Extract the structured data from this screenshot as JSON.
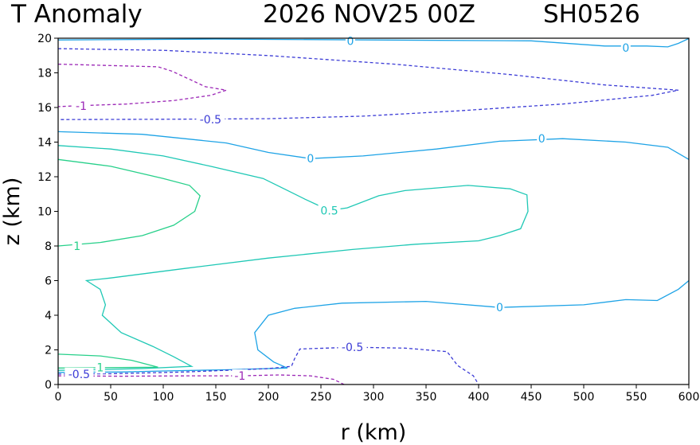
{
  "header": {
    "variable": "T Anomaly",
    "datetime": "2026 NOV25 00Z",
    "storm_id": "SH0526"
  },
  "chart_data": {
    "type": "contour",
    "title": "T Anomaly",
    "xlabel": "r (km)",
    "ylabel": "z (km)",
    "xlim": [
      0,
      600
    ],
    "ylim": [
      0,
      20
    ],
    "xticks": [
      0,
      50,
      100,
      150,
      200,
      250,
      300,
      350,
      400,
      450,
      500,
      550,
      600
    ],
    "yticks": [
      0,
      2,
      4,
      6,
      8,
      10,
      12,
      14,
      16,
      18,
      20
    ],
    "grid": false,
    "colors": {
      "neg1": "#9b26b6",
      "neg05": "#3c3cd6",
      "zero": "#1ea3e6",
      "pos05": "#1fc8b5",
      "pos1": "#27d08a"
    },
    "contours": [
      {
        "level": -1,
        "color": "#9b26b6",
        "dashed": true,
        "labels": [
          {
            "text": "-1",
            "x": 22,
            "z": 16.1
          }
        ],
        "points": [
          [
            0,
            18.5
          ],
          [
            95,
            18.35
          ],
          [
            108,
            18.1
          ],
          [
            126,
            17.6
          ],
          [
            140,
            17.2
          ],
          [
            160,
            17.0
          ],
          [
            145,
            16.7
          ],
          [
            110,
            16.4
          ],
          [
            65,
            16.2
          ],
          [
            20,
            16.1
          ],
          [
            0,
            16.05
          ]
        ]
      },
      {
        "level": -0.5,
        "color": "#3c3cd6",
        "dashed": true,
        "labels": [
          {
            "text": "-0.5",
            "x": 145,
            "z": 15.3
          }
        ],
        "points": [
          [
            0,
            19.4
          ],
          [
            100,
            19.3
          ],
          [
            200,
            19.0
          ],
          [
            320,
            18.5
          ],
          [
            430,
            17.9
          ],
          [
            520,
            17.3
          ],
          [
            590,
            17.0
          ],
          [
            565,
            16.7
          ],
          [
            480,
            16.2
          ],
          [
            380,
            15.8
          ],
          [
            290,
            15.5
          ],
          [
            200,
            15.35
          ],
          [
            100,
            15.32
          ],
          [
            0,
            15.3
          ]
        ]
      },
      {
        "level": 0,
        "color": "#1ea3e6",
        "dashed": false,
        "labels": [
          {
            "text": "0",
            "x": 278,
            "z": 19.85
          },
          {
            "text": "0",
            "x": 540,
            "z": 19.45
          }
        ],
        "points": [
          [
            0,
            19.9
          ],
          [
            150,
            19.95
          ],
          [
            300,
            19.9
          ],
          [
            450,
            19.85
          ],
          [
            520,
            19.55
          ],
          [
            560,
            19.55
          ],
          [
            580,
            19.5
          ],
          [
            590,
            19.7
          ],
          [
            600,
            19.98
          ]
        ]
      },
      {
        "level": 0,
        "color": "#1ea3e6",
        "dashed": false,
        "labels": [
          {
            "text": "0",
            "x": 240,
            "z": 13.05
          },
          {
            "text": "0",
            "x": 460,
            "z": 14.2
          }
        ],
        "points": [
          [
            0,
            14.6
          ],
          [
            80,
            14.45
          ],
          [
            160,
            13.95
          ],
          [
            200,
            13.4
          ],
          [
            240,
            13.05
          ],
          [
            290,
            13.2
          ],
          [
            360,
            13.6
          ],
          [
            420,
            14.05
          ],
          [
            480,
            14.2
          ],
          [
            540,
            14.0
          ],
          [
            580,
            13.7
          ],
          [
            600,
            13.0
          ]
        ]
      },
      {
        "level": 0.5,
        "color": "#1fc8b5",
        "dashed": false,
        "labels": [
          {
            "text": "0.5",
            "x": 258,
            "z": 10.05
          }
        ],
        "points": [
          [
            0,
            13.8
          ],
          [
            50,
            13.6
          ],
          [
            100,
            13.2
          ],
          [
            145,
            12.6
          ],
          [
            195,
            11.9
          ],
          [
            215,
            11.3
          ],
          [
            235,
            10.7
          ],
          [
            258,
            10.05
          ],
          [
            275,
            10.2
          ],
          [
            305,
            10.9
          ],
          [
            330,
            11.2
          ],
          [
            390,
            11.5
          ],
          [
            430,
            11.3
          ],
          [
            446,
            10.95
          ],
          [
            447,
            10.0
          ],
          [
            440,
            9.0
          ],
          [
            420,
            8.6
          ],
          [
            400,
            8.3
          ],
          [
            340,
            8.1
          ],
          [
            280,
            7.8
          ],
          [
            200,
            7.3
          ],
          [
            120,
            6.7
          ],
          [
            50,
            6.15
          ],
          [
            27,
            6.0
          ],
          [
            40,
            5.5
          ],
          [
            45,
            4.6
          ],
          [
            42,
            4.0
          ],
          [
            60,
            3.0
          ],
          [
            90,
            2.2
          ],
          [
            110,
            1.6
          ],
          [
            127,
            1.05
          ],
          [
            80,
            0.92
          ],
          [
            40,
            0.86
          ],
          [
            0,
            0.82
          ]
        ]
      },
      {
        "level": 1,
        "color": "#27d08a",
        "dashed": false,
        "labels": [
          {
            "text": "1",
            "x": 18,
            "z": 8.0
          }
        ],
        "points": [
          [
            0,
            13.0
          ],
          [
            50,
            12.6
          ],
          [
            100,
            11.9
          ],
          [
            125,
            11.5
          ],
          [
            135,
            10.9
          ],
          [
            130,
            10.0
          ],
          [
            110,
            9.2
          ],
          [
            80,
            8.6
          ],
          [
            40,
            8.2
          ],
          [
            0,
            8.0
          ]
        ]
      },
      {
        "level": 1,
        "color": "#27d08a",
        "dashed": false,
        "labels": [
          {
            "text": "1",
            "x": 40,
            "z": 1.0
          }
        ],
        "points": [
          [
            0,
            1.75
          ],
          [
            40,
            1.65
          ],
          [
            70,
            1.4
          ],
          [
            95,
            1.0
          ],
          [
            60,
            0.98
          ],
          [
            0,
            0.95
          ]
        ]
      },
      {
        "level": 0,
        "color": "#1ea3e6",
        "dashed": false,
        "labels": [
          {
            "text": "0",
            "x": 420,
            "z": 4.45
          }
        ],
        "points": [
          [
            600,
            6.0
          ],
          [
            590,
            5.5
          ],
          [
            570,
            4.85
          ],
          [
            540,
            4.9
          ],
          [
            500,
            4.6
          ],
          [
            420,
            4.45
          ],
          [
            350,
            4.8
          ],
          [
            270,
            4.7
          ],
          [
            225,
            4.4
          ],
          [
            200,
            4.0
          ],
          [
            187,
            3.0
          ],
          [
            190,
            2.0
          ],
          [
            205,
            1.3
          ],
          [
            218,
            0.95
          ],
          [
            160,
            0.85
          ],
          [
            100,
            0.78
          ],
          [
            60,
            0.72
          ],
          [
            0,
            0.7
          ]
        ]
      },
      {
        "level": -0.5,
        "color": "#3c3cd6",
        "dashed": true,
        "labels": [
          {
            "text": "-0.5",
            "x": 20,
            "z": 0.6
          },
          {
            "text": "-0.5",
            "x": 280,
            "z": 2.15
          }
        ],
        "points": [
          [
            0,
            0.6
          ],
          [
            50,
            0.62
          ],
          [
            120,
            0.72
          ],
          [
            160,
            0.82
          ],
          [
            200,
            0.92
          ],
          [
            222,
            1.05
          ],
          [
            225,
            1.5
          ],
          [
            230,
            2.05
          ],
          [
            280,
            2.15
          ],
          [
            330,
            2.1
          ],
          [
            370,
            1.9
          ],
          [
            380,
            1.1
          ],
          [
            395,
            0.5
          ],
          [
            400,
            0.0
          ]
        ]
      },
      {
        "level": -1,
        "color": "#9b26b6",
        "dashed": true,
        "labels": [
          {
            "text": "-1",
            "x": 173,
            "z": 0.5
          }
        ],
        "points": [
          [
            0,
            0.5
          ],
          [
            60,
            0.48
          ],
          [
            130,
            0.5
          ],
          [
            173,
            0.5
          ],
          [
            210,
            0.55
          ],
          [
            240,
            0.5
          ],
          [
            262,
            0.3
          ],
          [
            272,
            0.0
          ]
        ]
      }
    ]
  }
}
